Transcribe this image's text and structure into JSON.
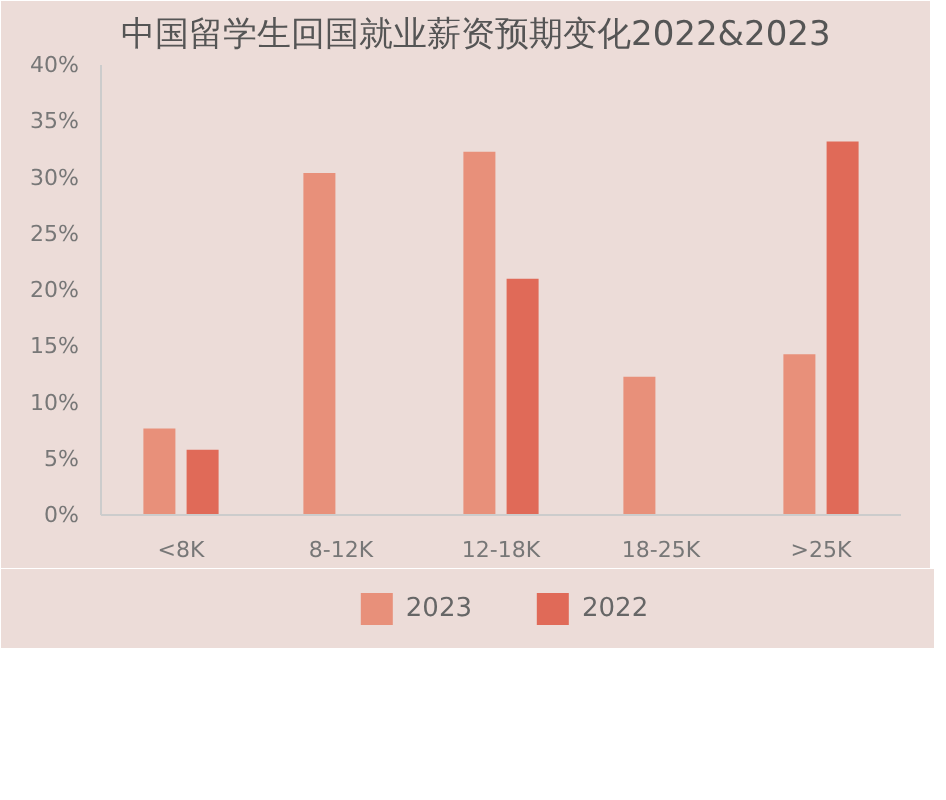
{
  "chart_data": {
    "type": "bar",
    "title": "中国留学生回国就业薪资预期变化2022&2023",
    "categories": [
      "<8K",
      "8-12K",
      "12-18K",
      "18-25K",
      ">25K"
    ],
    "series": [
      {
        "name": "2023",
        "color": "#e8907a",
        "values": [
          7.7,
          30.4,
          32.3,
          12.3,
          14.3
        ]
      },
      {
        "name": "2022",
        "color": "#e06a58",
        "values": [
          5.8,
          null,
          21,
          null,
          33.2
        ]
      }
    ],
    "ylim": [
      0,
      40
    ],
    "yticks": [
      {
        "value": 0,
        "label": "0%"
      },
      {
        "value": 5,
        "label": "5%"
      },
      {
        "value": 10,
        "label": "10%"
      },
      {
        "value": 15,
        "label": "15%"
      },
      {
        "value": 20,
        "label": "20%"
      },
      {
        "value": 25,
        "label": "25%"
      },
      {
        "value": 30,
        "label": "30%"
      },
      {
        "value": 35,
        "label": "35%"
      },
      {
        "value": 40,
        "label": "40%"
      }
    ],
    "grid": false,
    "legend": "bottom"
  }
}
